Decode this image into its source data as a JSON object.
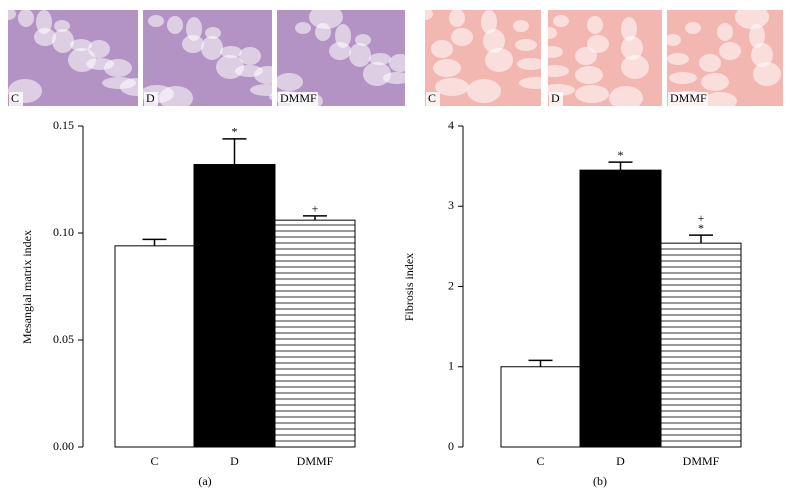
{
  "chart_data": [
    {
      "type": "bar",
      "caption": "(a)",
      "y_label": "Mesangial matrix index",
      "panel_images": [
        "C",
        "D",
        "DMMF"
      ],
      "image_tone": "#9a6fb0",
      "categories": [
        "C",
        "D",
        "DMMF"
      ],
      "values": [
        0.094,
        0.132,
        0.106
      ],
      "errors": [
        0.003,
        0.012,
        0.002
      ],
      "colors": [
        "#ffffff",
        "#000000",
        "#ffffff"
      ],
      "hatch": [
        false,
        false,
        true
      ],
      "annotations": [
        {
          "category": 1,
          "text": "*"
        },
        {
          "category": 2,
          "text": "+"
        }
      ],
      "ylim": [
        0,
        0.15
      ],
      "yticks": [
        {
          "value": 0,
          "label": "0.00"
        },
        0.05,
        {
          "value": 0.1,
          "label": "0.10"
        },
        0.15
      ]
    },
    {
      "type": "bar",
      "caption": "(b)",
      "y_label": "Fibrosis index",
      "panel_images": [
        "C",
        "D",
        "DMMF"
      ],
      "image_tone": "#ee9f97",
      "categories": [
        "C",
        "D",
        "DMMF"
      ],
      "values": [
        1.0,
        3.45,
        2.54
      ],
      "errors": [
        0.08,
        0.1,
        0.1
      ],
      "colors": [
        "#ffffff",
        "#000000",
        "#ffffff"
      ],
      "hatch": [
        false,
        false,
        true
      ],
      "annotations": [
        {
          "category": 1,
          "text": "*"
        },
        {
          "category": 2,
          "text": "*"
        },
        {
          "category": 2,
          "text": "+"
        }
      ],
      "ylim": [
        0,
        4
      ],
      "yticks": [
        0,
        1,
        2,
        3,
        4
      ]
    }
  ]
}
